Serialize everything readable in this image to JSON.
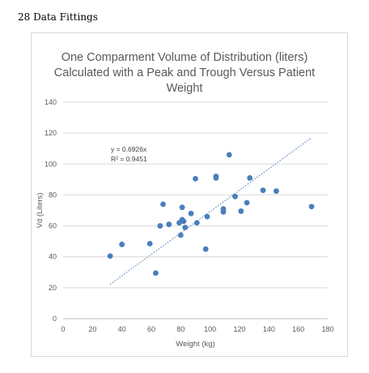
{
  "page": {
    "heading": "28 Data Fittings"
  },
  "chart_data": {
    "type": "scatter",
    "title_lines": [
      "One Comparment Volume of Distribution (liters)",
      "Calculated with a Peak and Trough Versus Patient",
      "Weight"
    ],
    "xlabel": "Weight (kg)",
    "ylabel": "Vd (Liters)",
    "xlim": [
      0,
      180
    ],
    "ylim": [
      0,
      140
    ],
    "xticks": [
      0,
      20,
      40,
      60,
      80,
      100,
      120,
      140,
      160,
      180
    ],
    "yticks": [
      0,
      20,
      40,
      60,
      80,
      100,
      120,
      140
    ],
    "grid": "horizontal",
    "marker_color": "#4a7ebb",
    "trendline": {
      "type": "linear-through-origin",
      "slope": 0.6926,
      "x_range": [
        32,
        169
      ],
      "equation": "y = 0.6926x",
      "r_squared": "R² = 0.9451",
      "color": "#4a7ebb"
    },
    "points": [
      {
        "x": 32,
        "y": 40.5
      },
      {
        "x": 40,
        "y": 48
      },
      {
        "x": 59,
        "y": 48.5
      },
      {
        "x": 63,
        "y": 29.5
      },
      {
        "x": 66,
        "y": 60
      },
      {
        "x": 68,
        "y": 74
      },
      {
        "x": 72,
        "y": 61
      },
      {
        "x": 79,
        "y": 62
      },
      {
        "x": 80,
        "y": 54
      },
      {
        "x": 81,
        "y": 72
      },
      {
        "x": 81,
        "y": 64
      },
      {
        "x": 82,
        "y": 63
      },
      {
        "x": 83,
        "y": 59
      },
      {
        "x": 87,
        "y": 68
      },
      {
        "x": 90,
        "y": 90.5
      },
      {
        "x": 91,
        "y": 62
      },
      {
        "x": 97,
        "y": 45
      },
      {
        "x": 98,
        "y": 66
      },
      {
        "x": 104,
        "y": 92
      },
      {
        "x": 104,
        "y": 91
      },
      {
        "x": 109,
        "y": 71
      },
      {
        "x": 109,
        "y": 69
      },
      {
        "x": 113,
        "y": 106
      },
      {
        "x": 117,
        "y": 79
      },
      {
        "x": 121,
        "y": 69.5
      },
      {
        "x": 125,
        "y": 75
      },
      {
        "x": 127,
        "y": 91
      },
      {
        "x": 136,
        "y": 83
      },
      {
        "x": 145,
        "y": 82.5
      },
      {
        "x": 169,
        "y": 72.5
      }
    ]
  }
}
